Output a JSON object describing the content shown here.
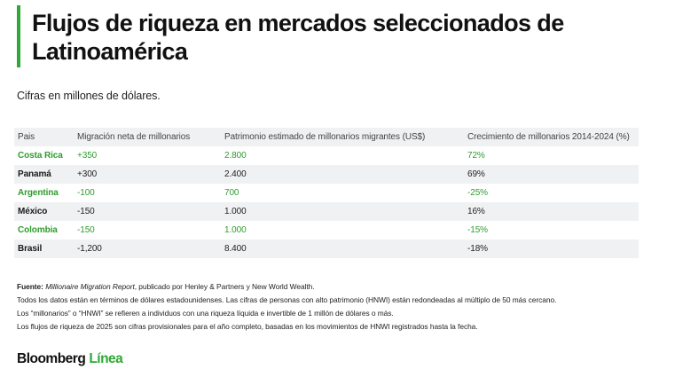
{
  "header": {
    "title": "Flujos de riqueza en mercados seleccionados de Latinoamérica",
    "subtitle": "Cifras en millones de dólares."
  },
  "colors": {
    "accent": "#2ea836",
    "highlight_text": "#2e9c2e",
    "row_alt_bg": "#f0f1f3"
  },
  "table": {
    "headers": [
      "Pais",
      "Migración neta de millonarios",
      "Patrimonio estimado de millonarios migrantes (US$)",
      "Crecimiento de millonarios 2014-2024 (%)"
    ],
    "rows": [
      {
        "country": "Costa Rica",
        "migration": "+350",
        "wealth": "2.800",
        "growth": "72%",
        "highlight": true
      },
      {
        "country": "Panamá",
        "migration": "+300",
        "wealth": "2.400",
        "growth": "69%",
        "highlight": false
      },
      {
        "country": "Argentina",
        "migration": "-100",
        "wealth": "700",
        "growth": "-25%",
        "highlight": true
      },
      {
        "country": "México",
        "migration": "-150",
        "wealth": "1.000",
        "growth": "16%",
        "highlight": false
      },
      {
        "country": "Colombia",
        "migration": "-150",
        "wealth": "1.000",
        "growth": "-15%",
        "highlight": true
      },
      {
        "country": "Brasil",
        "migration": "-1,200",
        "wealth": "8.400",
        "growth": "-18%",
        "highlight": false
      }
    ]
  },
  "footnotes": {
    "source_label": "Fuente:",
    "source_title": "Millionaire Migration Report",
    "source_rest": ", publicado por Henley & Partners y New World Wealth.",
    "lines": [
      "Todos los datos están en términos de dólares estadounidenses. Las cifras de personas con alto patrimonio (HNWI) están redondeadas al múltiplo de 50 más cercano.",
      "Los “millonarios” o “HNWI” se refieren a individuos con una riqueza líquida e invertible de 1 millón de dólares o más.",
      "Los flujos de riqueza de 2025 son cifras provisionales para el año completo, basadas en los movimientos de HNWI registrados hasta la fecha."
    ]
  },
  "logo": {
    "main": "Bloomberg",
    "accent": "Línea"
  }
}
